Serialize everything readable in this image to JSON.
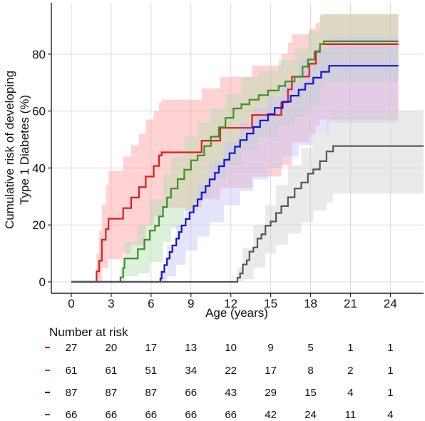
{
  "chart_data": {
    "type": "line",
    "subtype": "kaplan-meier-cumulative-incidence",
    "title": "",
    "xlabel": "Age (years)",
    "ylabel_lines": [
      "Cumulative risk of developing",
      "Type 1 Diabetes (%)"
    ],
    "xlim": [
      -1.5,
      26.5
    ],
    "ylim": [
      -4,
      98
    ],
    "x_ticks": [
      0,
      3,
      6,
      9,
      12,
      15,
      18,
      21,
      24
    ],
    "y_ticks": [
      0,
      20,
      40,
      60,
      80
    ],
    "grid": true,
    "legend": "none",
    "series": [
      {
        "color": "#e41a1c",
        "band_color": "#ff9da0",
        "steps": [
          [
            0,
            0
          ],
          [
            1.9,
            0
          ],
          [
            1.9,
            3.7
          ],
          [
            2.1,
            7.4
          ],
          [
            2.3,
            14.8
          ],
          [
            2.6,
            18.5
          ],
          [
            2.8,
            22.2
          ],
          [
            3.7,
            22.2
          ],
          [
            3.9,
            25.9
          ],
          [
            4.5,
            29.6
          ],
          [
            5.1,
            33.3
          ],
          [
            5.6,
            37.0
          ],
          [
            6.2,
            40.7
          ],
          [
            6.6,
            44.4
          ],
          [
            6.8,
            45.5
          ],
          [
            9.8,
            45.5
          ],
          [
            9.8,
            49.6
          ],
          [
            11.2,
            49.6
          ],
          [
            11.2,
            54.1
          ],
          [
            13.6,
            54.1
          ],
          [
            13.6,
            58.6
          ],
          [
            15.8,
            58.6
          ],
          [
            15.8,
            63.1
          ],
          [
            16.3,
            63.1
          ],
          [
            16.3,
            67.6
          ],
          [
            16.6,
            72.1
          ],
          [
            17.9,
            72.1
          ],
          [
            17.9,
            76.6
          ],
          [
            18.4,
            76.6
          ],
          [
            18.4,
            81.0
          ],
          [
            18.7,
            81.0
          ],
          [
            18.7,
            83.5
          ],
          [
            24.6,
            83.5
          ]
        ],
        "lower": [
          [
            0,
            0
          ],
          [
            1.9,
            0
          ],
          [
            2.1,
            0
          ],
          [
            2.3,
            5
          ],
          [
            2.8,
            8
          ],
          [
            3.9,
            10
          ],
          [
            4.5,
            13
          ],
          [
            5.6,
            20
          ],
          [
            6.2,
            23
          ],
          [
            6.8,
            26
          ],
          [
            9.8,
            29
          ],
          [
            11.2,
            33
          ],
          [
            13.6,
            37
          ],
          [
            15.8,
            41
          ],
          [
            16.6,
            49
          ],
          [
            17.9,
            52
          ],
          [
            18.4,
            55
          ],
          [
            18.7,
            57
          ],
          [
            24.6,
            57
          ]
        ],
        "upper": [
          [
            0,
            0
          ],
          [
            1.9,
            0
          ],
          [
            1.9,
            10
          ],
          [
            2.1,
            18
          ],
          [
            2.3,
            27
          ],
          [
            2.6,
            34
          ],
          [
            2.8,
            39
          ],
          [
            3.9,
            44
          ],
          [
            4.5,
            48
          ],
          [
            5.1,
            52
          ],
          [
            5.6,
            57
          ],
          [
            6.2,
            60
          ],
          [
            6.6,
            63
          ],
          [
            6.8,
            64
          ],
          [
            9.8,
            68
          ],
          [
            11.2,
            72
          ],
          [
            13.6,
            76
          ],
          [
            15.8,
            80
          ],
          [
            16.3,
            84
          ],
          [
            16.6,
            87
          ],
          [
            17.9,
            89
          ],
          [
            18.4,
            91
          ],
          [
            18.7,
            94
          ],
          [
            24.6,
            94
          ]
        ],
        "number_at_risk": [
          27,
          20,
          17,
          13,
          10,
          9,
          5,
          1,
          1
        ]
      },
      {
        "color": "#3c8f22",
        "band_color": "#b2ddb0",
        "steps": [
          [
            0,
            0
          ],
          [
            3.7,
            0
          ],
          [
            3.7,
            1.6
          ],
          [
            3.9,
            4.9
          ],
          [
            4.0,
            8.2
          ],
          [
            5.0,
            8.2
          ],
          [
            5.0,
            11.5
          ],
          [
            5.5,
            14.8
          ],
          [
            5.9,
            18.0
          ],
          [
            6.3,
            19.7
          ],
          [
            6.6,
            23.0
          ],
          [
            6.9,
            26.3
          ],
          [
            7.2,
            29.6
          ],
          [
            7.5,
            32.8
          ],
          [
            8.0,
            36.1
          ],
          [
            8.5,
            39.4
          ],
          [
            9.0,
            42.7
          ],
          [
            9.5,
            44.4
          ],
          [
            10.0,
            47.7
          ],
          [
            10.5,
            51.0
          ],
          [
            11.1,
            54.3
          ],
          [
            11.6,
            57.6
          ],
          [
            12.2,
            60.9
          ],
          [
            12.8,
            62.4
          ],
          [
            13.4,
            64.0
          ],
          [
            14.1,
            65.6
          ],
          [
            14.8,
            67.2
          ],
          [
            15.6,
            68.8
          ],
          [
            16.1,
            70.4
          ],
          [
            16.8,
            72.0
          ],
          [
            17.4,
            75.6
          ],
          [
            17.8,
            78.1
          ],
          [
            18.3,
            80.8
          ],
          [
            18.7,
            83.5
          ],
          [
            19.0,
            84.5
          ],
          [
            24.6,
            84.5
          ]
        ],
        "lower": [
          [
            0,
            0
          ],
          [
            3.7,
            0
          ],
          [
            4.0,
            2
          ],
          [
            5.0,
            3
          ],
          [
            5.9,
            7
          ],
          [
            6.9,
            14
          ],
          [
            7.5,
            19
          ],
          [
            8.5,
            25
          ],
          [
            9.5,
            30
          ],
          [
            10.5,
            36
          ],
          [
            11.6,
            41
          ],
          [
            12.8,
            46
          ],
          [
            14.1,
            51
          ],
          [
            15.6,
            55
          ],
          [
            16.8,
            58
          ],
          [
            17.8,
            62
          ],
          [
            18.7,
            68
          ],
          [
            19.0,
            70
          ],
          [
            24.6,
            70
          ]
        ],
        "upper": [
          [
            0,
            0
          ],
          [
            3.7,
            0
          ],
          [
            3.7,
            5
          ],
          [
            4.0,
            14
          ],
          [
            5.0,
            20
          ],
          [
            5.9,
            29
          ],
          [
            6.9,
            38
          ],
          [
            7.5,
            44
          ],
          [
            8.5,
            51
          ],
          [
            9.5,
            56
          ],
          [
            10.5,
            61
          ],
          [
            11.6,
            66
          ],
          [
            12.8,
            72
          ],
          [
            14.1,
            74
          ],
          [
            15.6,
            78
          ],
          [
            16.8,
            82
          ],
          [
            17.8,
            88
          ],
          [
            18.7,
            93
          ],
          [
            19.0,
            94
          ],
          [
            24.6,
            94
          ]
        ],
        "number_at_risk": [
          61,
          61,
          51,
          34,
          22,
          17,
          8,
          2,
          1
        ]
      },
      {
        "color": "#0d14d8",
        "band_color": "#c5c4fb",
        "steps": [
          [
            0,
            0
          ],
          [
            6.7,
            0
          ],
          [
            6.7,
            1.2
          ],
          [
            6.8,
            3.5
          ],
          [
            7.0,
            5.9
          ],
          [
            7.2,
            8.2
          ],
          [
            7.4,
            10.5
          ],
          [
            7.6,
            12.8
          ],
          [
            7.9,
            15.2
          ],
          [
            8.1,
            17.5
          ],
          [
            8.3,
            19.8
          ],
          [
            8.6,
            22.1
          ],
          [
            8.9,
            24.4
          ],
          [
            9.2,
            26.7
          ],
          [
            9.5,
            29.0
          ],
          [
            9.8,
            31.4
          ],
          [
            10.1,
            33.7
          ],
          [
            10.4,
            36.0
          ],
          [
            10.8,
            38.3
          ],
          [
            11.1,
            40.6
          ],
          [
            11.5,
            42.9
          ],
          [
            11.9,
            45.2
          ],
          [
            12.3,
            47.5
          ],
          [
            12.7,
            49.8
          ],
          [
            13.2,
            52.1
          ],
          [
            13.7,
            54.4
          ],
          [
            14.2,
            56.7
          ],
          [
            14.8,
            58.9
          ],
          [
            15.3,
            61.1
          ],
          [
            15.9,
            63.3
          ],
          [
            16.5,
            65.4
          ],
          [
            17.1,
            67.5
          ],
          [
            17.6,
            69.6
          ],
          [
            18.2,
            71.7
          ],
          [
            18.8,
            73.8
          ],
          [
            19.4,
            75.9
          ],
          [
            24.6,
            75.9
          ]
        ],
        "lower": [
          [
            0,
            0
          ],
          [
            6.7,
            0
          ],
          [
            7.2,
            2
          ],
          [
            7.9,
            6
          ],
          [
            8.6,
            11
          ],
          [
            9.5,
            16
          ],
          [
            10.4,
            21
          ],
          [
            11.5,
            27
          ],
          [
            12.7,
            32
          ],
          [
            13.7,
            36
          ],
          [
            14.8,
            40
          ],
          [
            15.9,
            44
          ],
          [
            17.1,
            48
          ],
          [
            18.2,
            52
          ],
          [
            19.4,
            56
          ],
          [
            24.6,
            56
          ]
        ],
        "upper": [
          [
            0,
            0
          ],
          [
            6.7,
            0
          ],
          [
            6.7,
            4
          ],
          [
            7.2,
            13
          ],
          [
            7.9,
            20
          ],
          [
            8.6,
            26
          ],
          [
            9.5,
            34
          ],
          [
            10.4,
            42
          ],
          [
            11.5,
            49
          ],
          [
            12.7,
            56
          ],
          [
            13.7,
            61
          ],
          [
            14.8,
            65
          ],
          [
            15.9,
            70
          ],
          [
            17.1,
            78
          ],
          [
            18.2,
            82
          ],
          [
            19.4,
            86
          ],
          [
            24.6,
            86
          ]
        ],
        "number_at_risk": [
          87,
          87,
          87,
          66,
          43,
          29,
          15,
          4,
          1
        ]
      },
      {
        "color": "#555555",
        "band_color": "#d0d0d0",
        "steps": [
          [
            0,
            0
          ],
          [
            12.5,
            0
          ],
          [
            12.5,
            1.5
          ],
          [
            12.7,
            3.0
          ],
          [
            12.9,
            6.1
          ],
          [
            13.2,
            7.6
          ],
          [
            13.4,
            10.6
          ],
          [
            13.7,
            12.1
          ],
          [
            14.0,
            15.2
          ],
          [
            14.3,
            16.7
          ],
          [
            14.6,
            19.7
          ],
          [
            15.0,
            21.2
          ],
          [
            15.4,
            24.2
          ],
          [
            15.8,
            26.6
          ],
          [
            16.3,
            29.7
          ],
          [
            16.8,
            32.8
          ],
          [
            17.3,
            34.9
          ],
          [
            17.8,
            38.0
          ],
          [
            18.2,
            39.5
          ],
          [
            18.7,
            42.4
          ],
          [
            19.2,
            45.8
          ],
          [
            19.7,
            47.7
          ],
          [
            26.5,
            47.7
          ]
        ],
        "lower": [
          [
            0,
            0
          ],
          [
            12.5,
            0
          ],
          [
            12.9,
            1
          ],
          [
            13.7,
            5
          ],
          [
            14.6,
            10
          ],
          [
            15.4,
            13
          ],
          [
            16.3,
            17
          ],
          [
            17.3,
            21
          ],
          [
            18.2,
            25
          ],
          [
            19.2,
            28
          ],
          [
            19.7,
            31
          ],
          [
            26.5,
            31
          ]
        ],
        "upper": [
          [
            0,
            0
          ],
          [
            12.5,
            0
          ],
          [
            12.5,
            5
          ],
          [
            12.9,
            12
          ],
          [
            13.7,
            20
          ],
          [
            14.6,
            27
          ],
          [
            15.4,
            34
          ],
          [
            16.3,
            41
          ],
          [
            17.3,
            47
          ],
          [
            18.2,
            52
          ],
          [
            19.2,
            57
          ],
          [
            19.7,
            60
          ],
          [
            26.5,
            60
          ]
        ],
        "number_at_risk": [
          66,
          66,
          66,
          66,
          66,
          42,
          24,
          11,
          4
        ]
      }
    ],
    "risk_table": {
      "title": "Number at risk",
      "times": [
        0,
        3,
        6,
        9,
        12,
        15,
        18,
        21,
        24
      ]
    }
  }
}
